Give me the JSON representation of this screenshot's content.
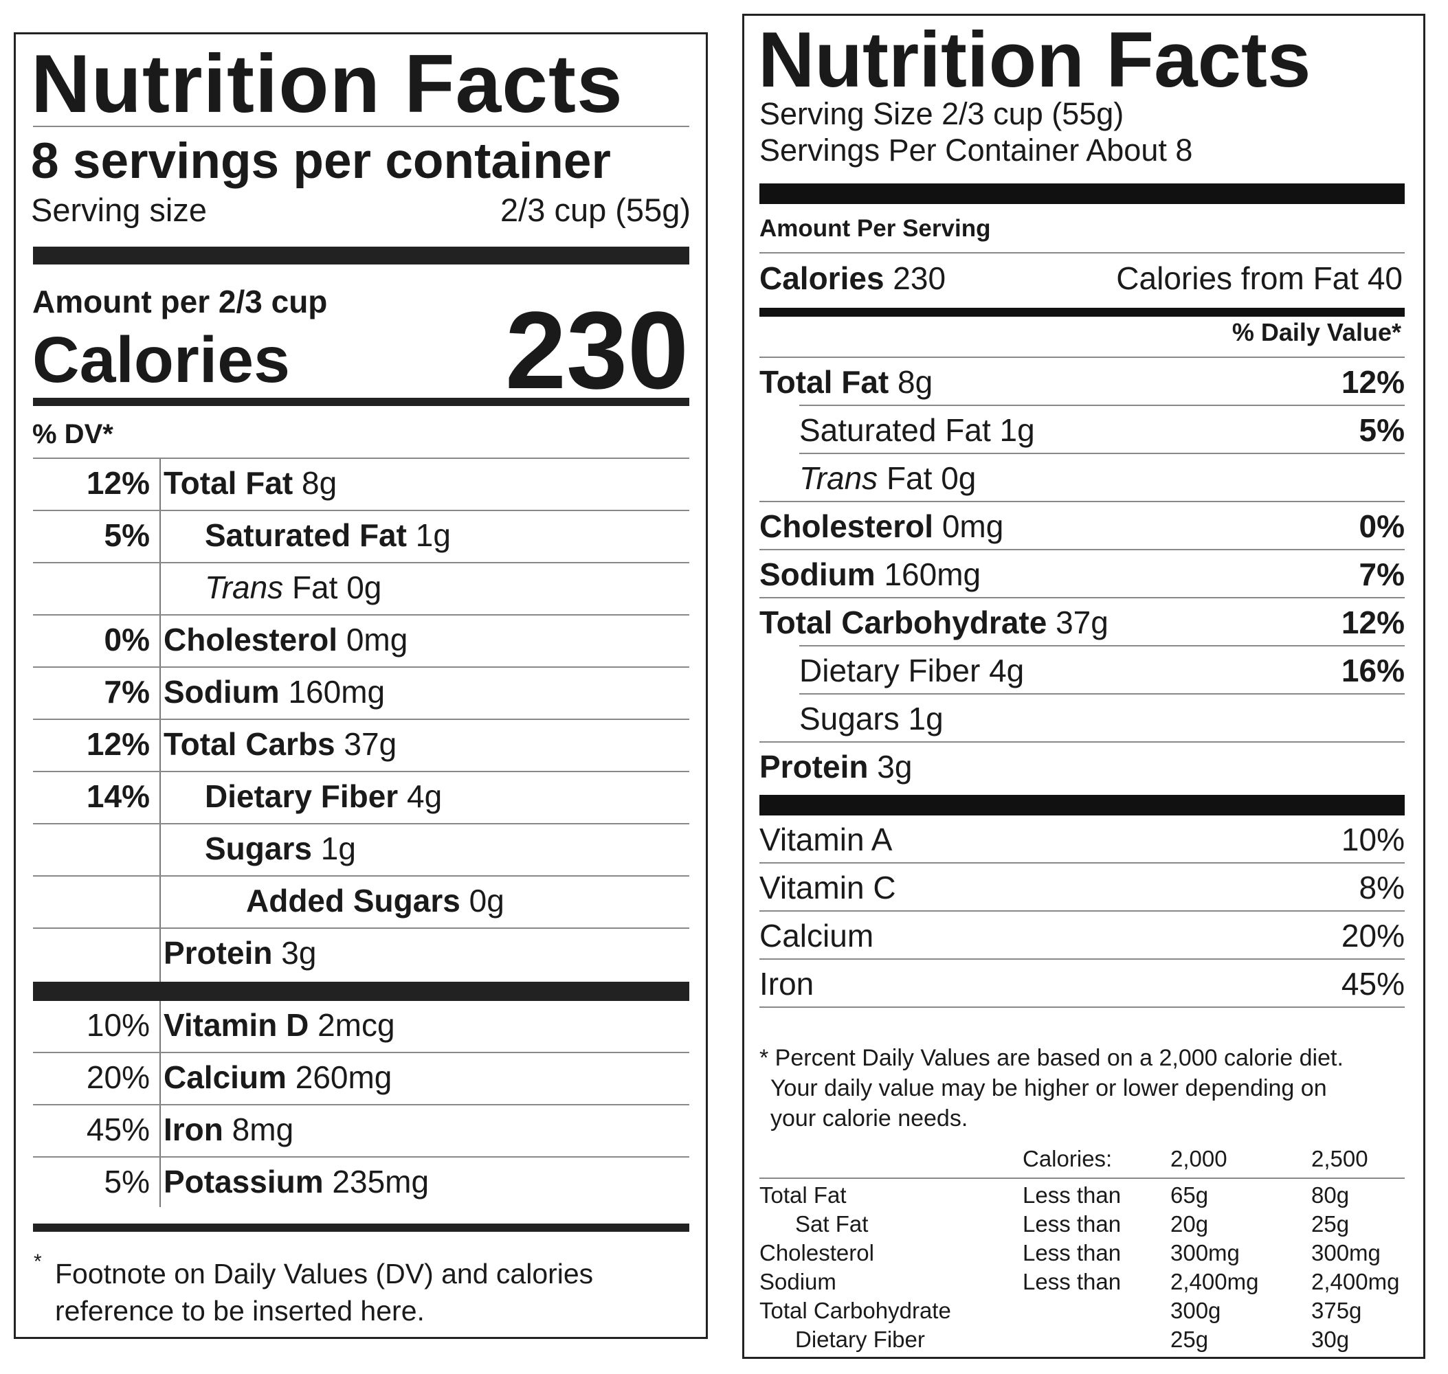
{
  "left_label": {
    "title": "Nutrition Facts",
    "servings_per_container": "8 servings per container",
    "serving_size_label": "Serving size",
    "serving_size_value": "2/3 cup (55g)",
    "amount_per": "Amount per 2/3 cup",
    "calories_label": "Calories",
    "calories_value": "230",
    "dv_header": "% DV*",
    "nutrients": [
      {
        "pct": "12%",
        "name": "Total Fat",
        "amount": " 8g",
        "indent": 0
      },
      {
        "pct": "5%",
        "name": "Saturated Fat",
        "amount": " 1g",
        "indent": 1
      },
      {
        "pct": "",
        "name": "Trans",
        "amount": " Fat 0g",
        "indent": 1
      },
      {
        "pct": "0%",
        "name": "Cholesterol",
        "amount": " 0mg",
        "indent": 0
      },
      {
        "pct": "7%",
        "name": "Sodium",
        "amount": " 160mg",
        "indent": 0
      },
      {
        "pct": "12%",
        "name": "Total Carbs",
        "amount": " 37g",
        "indent": 0
      },
      {
        "pct": "14%",
        "name": "Dietary Fiber",
        "amount": " 4g",
        "indent": 1
      },
      {
        "pct": "",
        "name": "Sugars",
        "amount": " 1g",
        "indent": 1
      },
      {
        "pct": "",
        "name": "Added Sugars",
        "amount": " 0g",
        "indent": 2
      },
      {
        "pct": "",
        "name": "Protein",
        "amount": " 3g",
        "indent": 0
      }
    ],
    "vitamins": [
      {
        "pct": "10%",
        "name": "Vitamin D",
        "amount": " 2mcg"
      },
      {
        "pct": "20%",
        "name": "Calcium",
        "amount": " 260mg"
      },
      {
        "pct": "45%",
        "name": "Iron",
        "amount": " 8mg"
      },
      {
        "pct": "5%",
        "name": "Potassium",
        "amount": " 235mg"
      }
    ],
    "footnote_star": "*",
    "footnote_line1": "Footnote on Daily Values (DV) and calories",
    "footnote_line2": "reference to be inserted here."
  },
  "right_label": {
    "title": "Nutrition Facts",
    "serving_size": "Serving Size 2/3 cup (55g)",
    "servings_per_container": "Servings Per Container About 8",
    "amount_per_serving": "Amount Per Serving",
    "calories_label": "Calories",
    "calories_value": " 230",
    "calories_from_fat": "Calories from Fat 40",
    "dv_header": "% Daily Value*",
    "nutrients": [
      {
        "name": "Total Fat",
        "amount": " 8g",
        "dv": "12%",
        "indent": 0
      },
      {
        "name": "Saturated Fat",
        "amount": " 1g",
        "dv": "5%",
        "indent": 1
      },
      {
        "name": "Trans",
        "amount": " Fat 0g",
        "dv": "",
        "indent": 1
      },
      {
        "name": "Cholesterol",
        "amount": " 0mg",
        "dv": "0%",
        "indent": 0
      },
      {
        "name": "Sodium",
        "amount": " 160mg",
        "dv": "7%",
        "indent": 0
      },
      {
        "name": "Total Carbohydrate",
        "amount": " 37g",
        "dv": "12%",
        "indent": 0
      },
      {
        "name": "Dietary Fiber",
        "amount": " 4g",
        "dv": "16%",
        "indent": 1
      },
      {
        "name": "Sugars",
        "amount": " 1g",
        "dv": "",
        "indent": 1
      },
      {
        "name": "Protein",
        "amount": " 3g",
        "dv": "",
        "indent": 0
      }
    ],
    "vitamins": [
      {
        "name": "Vitamin A",
        "value": "10%"
      },
      {
        "name": "Vitamin C",
        "value": "8%"
      },
      {
        "name": "Calcium",
        "value": "20%"
      },
      {
        "name": "Iron",
        "value": "45%"
      }
    ],
    "footnote_line1": "* Percent Daily Values are based on a 2,000 calorie diet.",
    "footnote_line2": "Your daily value may be higher or lower depending on",
    "footnote_line3": "your calorie needs.",
    "reference_table": {
      "header": [
        "",
        "Calories:",
        "2,000",
        "2,500"
      ],
      "rows": [
        [
          "Total Fat",
          "Less than",
          "65g",
          "80g"
        ],
        [
          "Sat Fat",
          "Less than",
          "20g",
          "25g"
        ],
        [
          "Cholesterol",
          "Less than",
          "300mg",
          "300mg"
        ],
        [
          "Sodium",
          "Less than",
          "2,400mg",
          "2,400mg"
        ],
        [
          "Total Carbohydrate",
          "",
          "300g",
          "375g"
        ],
        [
          "Dietary Fiber",
          "",
          "25g",
          "30g"
        ]
      ]
    }
  }
}
